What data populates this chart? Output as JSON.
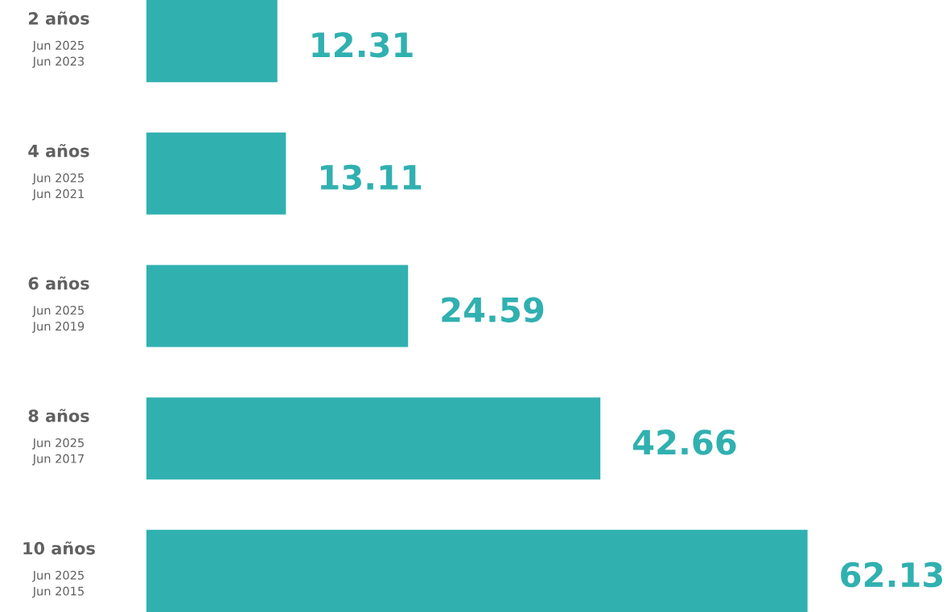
{
  "chart_data": {
    "type": "bar",
    "orientation": "horizontal",
    "categories": [
      "2 años\nJun 2025\nJun 2023",
      "4 años\nJun 2025\nJun 2021",
      "6 años\nJun 2025\nJun 2019",
      "8 años\nJun 2025\nJun 2017",
      "10 años\nJun 2025\nJun 2015"
    ],
    "values": [
      12.31,
      13.11,
      24.59,
      42.66,
      62.13
    ],
    "color": "#31b0b0",
    "data_labels": true,
    "legend": false
  }
}
